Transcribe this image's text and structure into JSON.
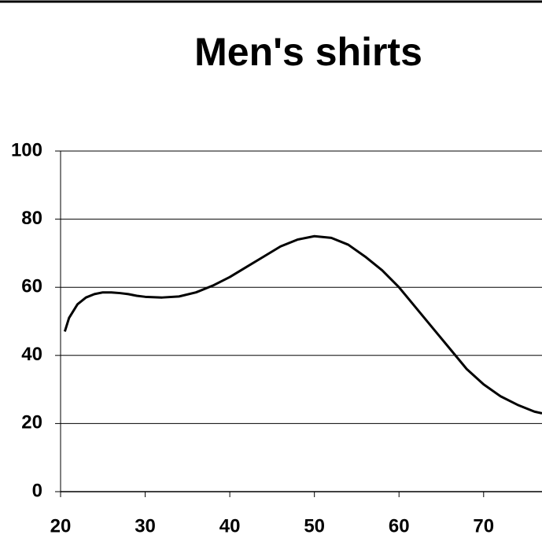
{
  "chart_data": {
    "type": "line",
    "title": "Men's shirts",
    "x": [
      20.5,
      21,
      22,
      23,
      24,
      25,
      26,
      27,
      28,
      29,
      30,
      32,
      34,
      36,
      38,
      40,
      42,
      44,
      46,
      48,
      50,
      52,
      54,
      56,
      58,
      60,
      62,
      64,
      66,
      68,
      70,
      72,
      74,
      76,
      76.9
    ],
    "values": [
      47,
      51,
      55,
      57,
      58,
      58.5,
      58.5,
      58.3,
      58,
      57.5,
      57.2,
      57,
      57.3,
      58.5,
      60.5,
      63,
      66,
      69,
      72,
      74,
      75,
      74.5,
      72.5,
      69,
      65,
      60,
      54,
      48,
      42,
      36,
      31.5,
      28,
      25.5,
      23.5,
      23
    ],
    "color": "#000000",
    "xlim": [
      20,
      76.9
    ],
    "xticks": [
      20,
      30,
      40,
      50,
      60,
      70
    ],
    "ylim": [
      0,
      100
    ],
    "yticks": [
      0,
      20,
      40,
      60,
      80,
      100
    ],
    "grid": true
  }
}
